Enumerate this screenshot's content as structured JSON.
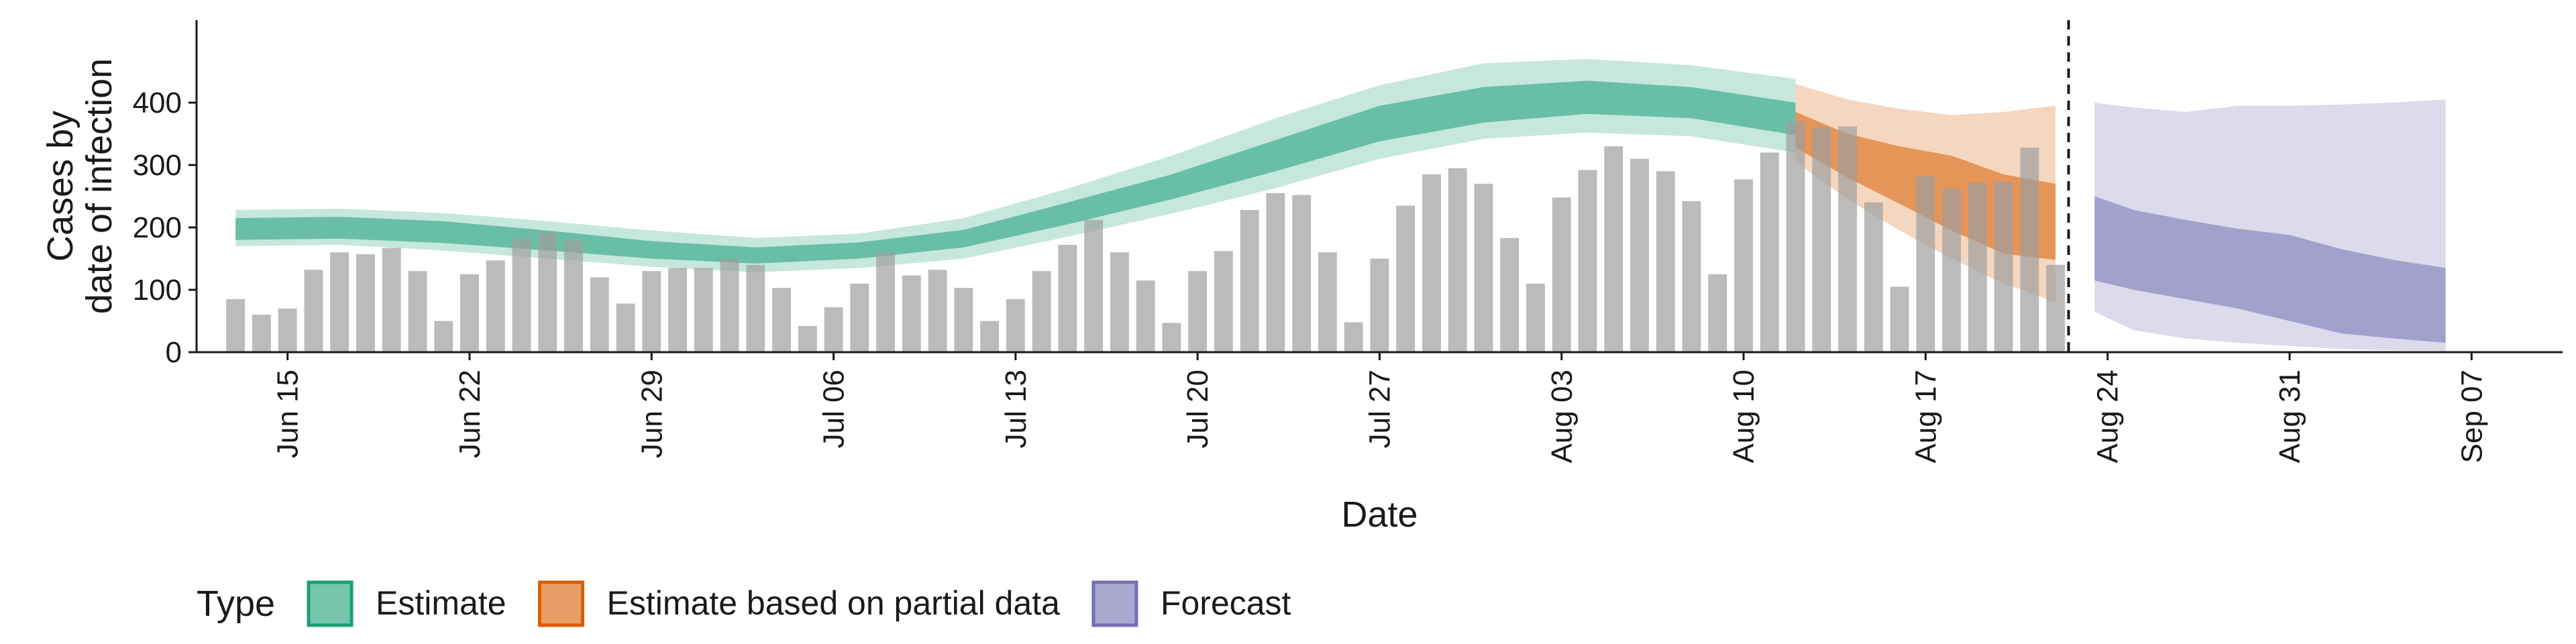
{
  "chart_data": {
    "type": "bar",
    "xlabel": "Date",
    "ylabel_lines": [
      "Cases by",
      "date of infection"
    ],
    "ylim": [
      0,
      500
    ],
    "yticks": [
      0,
      100,
      200,
      300,
      400
    ],
    "x_range_days": [
      -3.5,
      87.5
    ],
    "x_day0": "Jun 15",
    "xticks": [
      {
        "day": 0,
        "label": "Jun 15"
      },
      {
        "day": 7,
        "label": "Jun 22"
      },
      {
        "day": 14,
        "label": "Jun 29"
      },
      {
        "day": 21,
        "label": "Jul 06"
      },
      {
        "day": 28,
        "label": "Jul 13"
      },
      {
        "day": 35,
        "label": "Jul 20"
      },
      {
        "day": 42,
        "label": "Jul 27"
      },
      {
        "day": 49,
        "label": "Aug 03"
      },
      {
        "day": 56,
        "label": "Aug 10"
      },
      {
        "day": 63,
        "label": "Aug 17"
      },
      {
        "day": 70,
        "label": "Aug 24"
      },
      {
        "day": 77,
        "label": "Aug 31"
      },
      {
        "day": 84,
        "label": "Sep 07"
      }
    ],
    "bars_start_day": -2,
    "bars": [
      85,
      60,
      70,
      132,
      160,
      157,
      167,
      130,
      50,
      125,
      147,
      183,
      192,
      180,
      120,
      78,
      130,
      135,
      135,
      150,
      140,
      103,
      42,
      72,
      110,
      160,
      123,
      132,
      103,
      50,
      85,
      130,
      172,
      212,
      160,
      115,
      47,
      130,
      162,
      228,
      255,
      252,
      160,
      48,
      150,
      235,
      285,
      295,
      270,
      183,
      110,
      248,
      292,
      330,
      310,
      290,
      242,
      125,
      277,
      320,
      370,
      360,
      362,
      240,
      105,
      282,
      262,
      272,
      273,
      328,
      140
    ],
    "forecast_line_day": 68.5,
    "legend_title": "Type",
    "series": [
      {
        "name": "Estimate",
        "color_dark": "#1b9e77",
        "days": [
          -2,
          2,
          6,
          10,
          14,
          18,
          22,
          26,
          30,
          34,
          38,
          42,
          46,
          50,
          54,
          58
        ],
        "inner_low": [
          180,
          182,
          175,
          163,
          150,
          142,
          150,
          168,
          205,
          245,
          290,
          338,
          368,
          382,
          375,
          348
        ],
        "inner_high": [
          215,
          217,
          210,
          195,
          178,
          168,
          176,
          196,
          240,
          285,
          340,
          395,
          425,
          435,
          425,
          400
        ],
        "outer_low": [
          170,
          172,
          163,
          150,
          137,
          128,
          135,
          150,
          185,
          222,
          263,
          310,
          342,
          352,
          346,
          320
        ],
        "outer_high": [
          228,
          230,
          223,
          210,
          195,
          183,
          190,
          215,
          262,
          315,
          375,
          428,
          463,
          470,
          460,
          438
        ]
      },
      {
        "name": "Estimate based on partial data",
        "color_dark": "#d95f02",
        "days": [
          58,
          60,
          62,
          64,
          66,
          68
        ],
        "inner_low": [
          328,
          280,
          238,
          195,
          158,
          148
        ],
        "inner_high": [
          385,
          350,
          330,
          315,
          285,
          270
        ],
        "outer_low": [
          305,
          245,
          195,
          150,
          110,
          80
        ],
        "outer_high": [
          430,
          405,
          390,
          380,
          385,
          395
        ]
      },
      {
        "name": "Forecast",
        "color_dark": "#7570b3",
        "days": [
          69.5,
          71,
          73,
          75,
          77,
          79,
          81,
          83
        ],
        "inner_low": [
          115,
          100,
          85,
          70,
          50,
          30,
          22,
          15
        ],
        "inner_high": [
          250,
          228,
          212,
          198,
          188,
          165,
          148,
          135
        ],
        "outer_low": [
          65,
          35,
          22,
          15,
          10,
          5,
          3,
          2
        ],
        "outer_high": [
          400,
          392,
          385,
          395,
          395,
          397,
          400,
          405
        ]
      }
    ]
  }
}
